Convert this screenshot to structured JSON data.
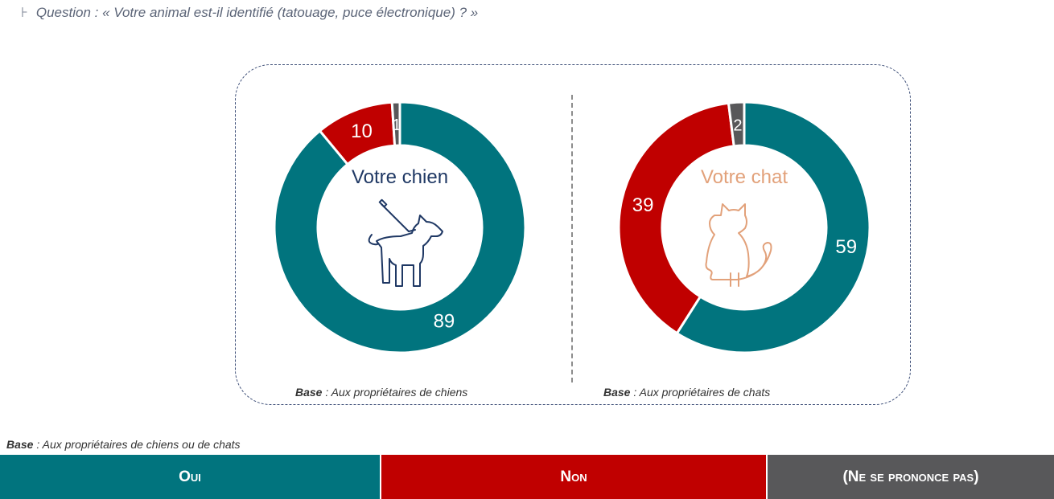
{
  "question": {
    "bullet": "⊦",
    "text": "Question : « Votre animal est-il identifié (tatouage, puce électronique) ? »"
  },
  "colors": {
    "oui": "#01747e",
    "non": "#c00000",
    "nsp": "#58585a",
    "dog_title": "#1f3864",
    "cat_title": "#e2a17a"
  },
  "chart_data": [
    {
      "type": "pie",
      "variant": "donut",
      "title": "Votre chien",
      "categories": [
        "Oui",
        "Non",
        "(Ne se prononce pas)"
      ],
      "values": [
        89,
        10,
        1
      ],
      "value_labels": [
        "89",
        "10",
        "1"
      ],
      "icon": "dog-on-leash-icon",
      "base_label": "Base",
      "base_text": " : Aux propriétaires de chiens"
    },
    {
      "type": "pie",
      "variant": "donut",
      "title": "Votre chat",
      "categories": [
        "Oui",
        "Non",
        "(Ne se prononce pas)"
      ],
      "values": [
        59,
        39,
        2
      ],
      "value_labels": [
        "59",
        "39",
        "2"
      ],
      "icon": "cat-icon",
      "base_label": "Base",
      "base_text": " : Aux propriétaires de chats"
    }
  ],
  "footer_base": {
    "label": "Base",
    "text": " : Aux propriétaires de chiens ou de chats"
  },
  "legend": [
    {
      "label": "Oui",
      "color": "#01747e"
    },
    {
      "label": "Non",
      "color": "#c00000"
    },
    {
      "label": "(Ne se prononce pas)",
      "color": "#58585a"
    }
  ]
}
